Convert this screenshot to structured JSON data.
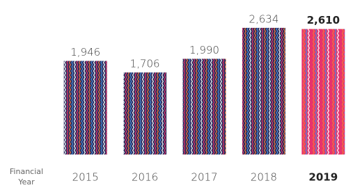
{
  "chart_data": {
    "type": "bar",
    "x_label": "Financial Year",
    "categories": [
      "2015",
      "2016",
      "2017",
      "2018",
      "2019"
    ],
    "values": [
      1946,
      1706,
      1990,
      2634,
      2610
    ],
    "value_labels": [
      "1,946",
      "1,706",
      "1,990",
      "2,634",
      "2,610"
    ],
    "colors": [
      "#2b2d5c",
      "#2b2d5c",
      "#2b2d5c",
      "#2b2d5c",
      "#e8336d"
    ],
    "highlight": [
      false,
      false,
      false,
      false,
      true
    ]
  }
}
